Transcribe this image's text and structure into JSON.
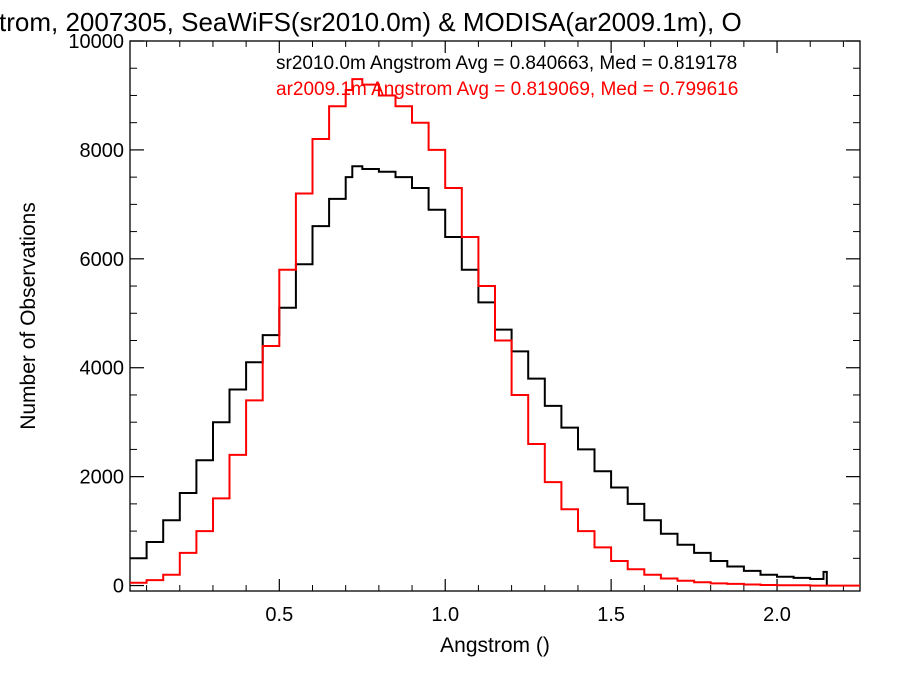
{
  "chart_data": {
    "type": "line",
    "title": "strom, 2007305, SeaWiFS(sr2010.0m) & MODISA(ar2009.1m), O",
    "xlabel": "Angstrom ()",
    "ylabel": "Number of Observations",
    "xlim": [
      0.05,
      2.25
    ],
    "ylim": [
      -100,
      10000
    ],
    "xticks": [
      0.5,
      1.0,
      1.5,
      2.0
    ],
    "xtick_labels": [
      "0.5",
      "1.0",
      "1.5",
      "2.0"
    ],
    "yticks": [
      0,
      2000,
      4000,
      6000,
      8000,
      10000
    ],
    "ytick_labels": [
      "0",
      "2000",
      "4000",
      "6000",
      "8000",
      "10000"
    ],
    "grid": false,
    "legend_position": "top-right",
    "series": [
      {
        "name": "sr2010.0m Angstrom Avg = 0.840663, Med = 0.819178",
        "color": "#000000",
        "x": [
          0.05,
          0.1,
          0.15,
          0.2,
          0.25,
          0.3,
          0.35,
          0.4,
          0.45,
          0.5,
          0.55,
          0.6,
          0.65,
          0.7,
          0.72,
          0.75,
          0.8,
          0.85,
          0.9,
          0.95,
          1.0,
          1.05,
          1.1,
          1.15,
          1.2,
          1.25,
          1.3,
          1.35,
          1.4,
          1.45,
          1.5,
          1.55,
          1.6,
          1.65,
          1.7,
          1.75,
          1.8,
          1.85,
          1.9,
          1.95,
          2.0,
          2.05,
          2.1,
          2.14,
          2.15
        ],
        "y": [
          500,
          800,
          1200,
          1700,
          2300,
          3000,
          3600,
          4100,
          4600,
          5100,
          5900,
          6600,
          7100,
          7500,
          7700,
          7650,
          7600,
          7500,
          7300,
          6900,
          6400,
          5800,
          5200,
          4700,
          4300,
          3800,
          3300,
          2900,
          2500,
          2100,
          1800,
          1500,
          1200,
          950,
          750,
          600,
          450,
          350,
          270,
          200,
          160,
          140,
          120,
          250,
          0
        ]
      },
      {
        "name": "ar2009.1m Angstrom Avg = 0.819069, Med = 0.799616",
        "color": "#ff0000",
        "x": [
          0.05,
          0.1,
          0.15,
          0.2,
          0.25,
          0.3,
          0.35,
          0.4,
          0.45,
          0.5,
          0.55,
          0.6,
          0.65,
          0.7,
          0.72,
          0.75,
          0.8,
          0.85,
          0.9,
          0.95,
          1.0,
          1.05,
          1.1,
          1.15,
          1.2,
          1.25,
          1.3,
          1.35,
          1.4,
          1.45,
          1.5,
          1.55,
          1.6,
          1.65,
          1.7,
          1.75,
          1.8,
          1.85,
          1.9,
          1.95,
          2.0,
          2.05,
          2.1,
          2.15,
          2.2,
          2.25
        ],
        "y": [
          50,
          100,
          200,
          600,
          1000,
          1600,
          2400,
          3400,
          4400,
          5800,
          7200,
          8200,
          8800,
          9100,
          9300,
          9200,
          9000,
          8800,
          8500,
          8000,
          7300,
          6400,
          5500,
          4500,
          3500,
          2600,
          1900,
          1400,
          1000,
          700,
          450,
          300,
          200,
          130,
          90,
          60,
          40,
          30,
          20,
          10,
          5,
          5,
          0,
          0,
          0,
          0
        ]
      }
    ]
  }
}
